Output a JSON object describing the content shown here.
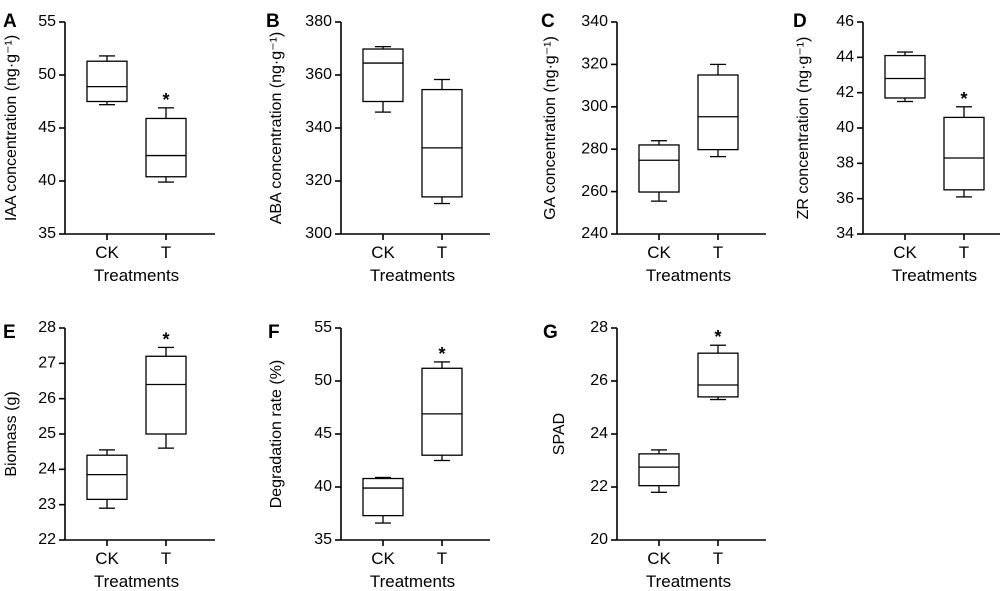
{
  "chart_data": [
    {
      "panel": "A",
      "type": "box",
      "ylabel": "IAA concentration (ng·g⁻¹)",
      "xlabel": "Treatments",
      "categories": [
        "CK",
        "T"
      ],
      "ylim": [
        35,
        55
      ],
      "yticks": [
        35,
        40,
        45,
        50,
        55
      ],
      "boxes": [
        {
          "min": 47.2,
          "q1": 47.5,
          "median": 48.9,
          "q3": 51.3,
          "max": 51.8,
          "sig": ""
        },
        {
          "min": 39.9,
          "q1": 40.4,
          "median": 42.4,
          "q3": 45.9,
          "max": 46.9,
          "sig": "*"
        }
      ]
    },
    {
      "panel": "B",
      "type": "box",
      "ylabel": "ABA concentration (ng·g⁻¹)",
      "xlabel": "Treatments",
      "categories": [
        "CK",
        "T"
      ],
      "ylim": [
        300,
        380
      ],
      "yticks": [
        300,
        320,
        340,
        360,
        380
      ],
      "boxes": [
        {
          "min": 346,
          "q1": 350,
          "median": 364.5,
          "q3": 369.8,
          "max": 370.7,
          "sig": ""
        },
        {
          "min": 311.5,
          "q1": 314,
          "median": 332.5,
          "q3": 354.5,
          "max": 358.3,
          "sig": ""
        }
      ]
    },
    {
      "panel": "C",
      "type": "box",
      "ylabel": "GA concentration (ng·g⁻¹)",
      "xlabel": "Treatments",
      "categories": [
        "CK",
        "T"
      ],
      "ylim": [
        240,
        340
      ],
      "yticks": [
        240,
        260,
        280,
        300,
        320,
        340
      ],
      "boxes": [
        {
          "min": 255.5,
          "q1": 259.8,
          "median": 274.8,
          "q3": 282,
          "max": 284,
          "sig": ""
        },
        {
          "min": 276.5,
          "q1": 279.8,
          "median": 295.3,
          "q3": 315,
          "max": 320,
          "sig": ""
        }
      ]
    },
    {
      "panel": "D",
      "type": "box",
      "ylabel": "ZR concentration (ng·g⁻¹)",
      "xlabel": "Treatments",
      "categories": [
        "CK",
        "T"
      ],
      "ylim": [
        34,
        46
      ],
      "yticks": [
        34,
        36,
        38,
        40,
        42,
        44,
        46
      ],
      "boxes": [
        {
          "min": 41.5,
          "q1": 41.7,
          "median": 42.8,
          "q3": 44.1,
          "max": 44.3,
          "sig": ""
        },
        {
          "min": 36.1,
          "q1": 36.5,
          "median": 38.3,
          "q3": 40.6,
          "max": 41.2,
          "sig": "*"
        }
      ]
    },
    {
      "panel": "E",
      "type": "box",
      "ylabel": "Biomass (g)",
      "xlabel": "Treatments",
      "categories": [
        "CK",
        "T"
      ],
      "ylim": [
        22,
        28
      ],
      "yticks": [
        22,
        23,
        24,
        25,
        26,
        27,
        28
      ],
      "boxes": [
        {
          "min": 22.9,
          "q1": 23.15,
          "median": 23.85,
          "q3": 24.4,
          "max": 24.55,
          "sig": ""
        },
        {
          "min": 24.6,
          "q1": 25.0,
          "median": 26.4,
          "q3": 27.2,
          "max": 27.45,
          "sig": "*"
        }
      ]
    },
    {
      "panel": "F",
      "type": "box",
      "ylabel": "Degradation rate (%)",
      "xlabel": "Treatments",
      "categories": [
        "CK",
        "T"
      ],
      "ylim": [
        35,
        55
      ],
      "yticks": [
        35,
        40,
        45,
        50,
        55
      ],
      "boxes": [
        {
          "min": 36.6,
          "q1": 37.3,
          "median": 39.9,
          "q3": 40.8,
          "max": 40.9,
          "sig": ""
        },
        {
          "min": 42.5,
          "q1": 43.0,
          "median": 46.9,
          "q3": 51.2,
          "max": 51.8,
          "sig": "*"
        }
      ]
    },
    {
      "panel": "G",
      "type": "box",
      "ylabel": "SPAD",
      "xlabel": "Treatments",
      "categories": [
        "CK",
        "T"
      ],
      "ylim": [
        20,
        28
      ],
      "yticks": [
        20,
        22,
        24,
        26,
        28
      ],
      "boxes": [
        {
          "min": 21.8,
          "q1": 22.05,
          "median": 22.75,
          "q3": 23.25,
          "max": 23.4,
          "sig": ""
        },
        {
          "min": 25.3,
          "q1": 25.4,
          "median": 25.85,
          "q3": 27.05,
          "max": 27.35,
          "sig": "*"
        }
      ]
    }
  ]
}
